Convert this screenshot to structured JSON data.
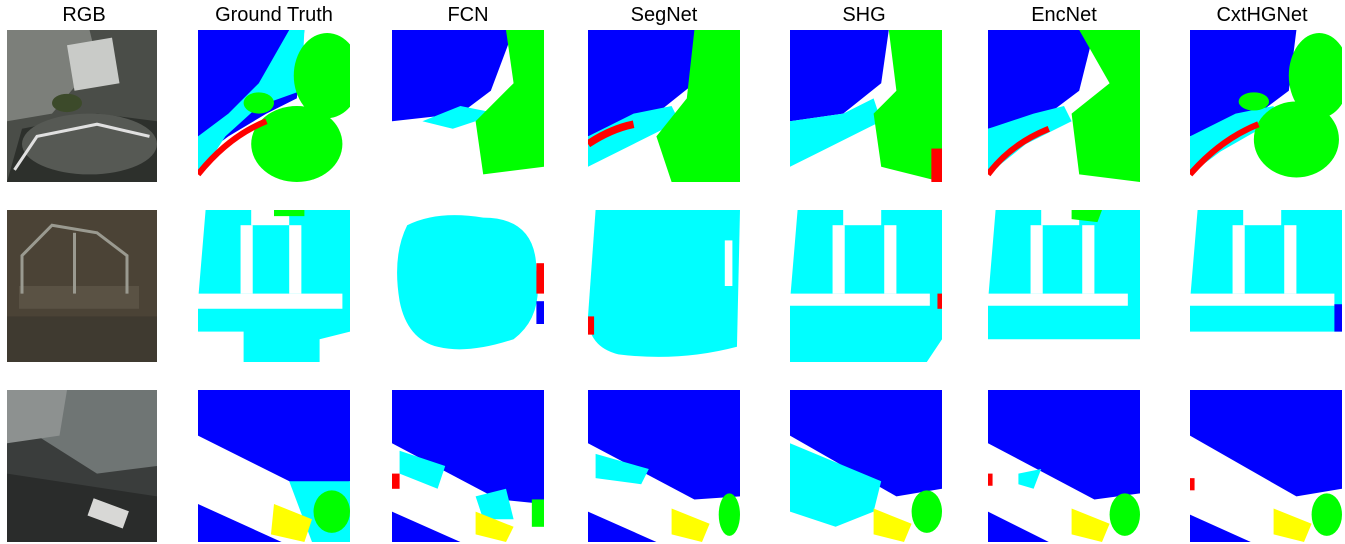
{
  "columns": [
    "RGB",
    "Ground Truth",
    "FCN",
    "SegNet",
    "SHG",
    "EncNet",
    "CxtHGNet"
  ],
  "palette": {
    "impervious_surface": "#ffffff",
    "building": "#0000ff",
    "low_vegetation": "#00ffff",
    "tree": "#00ff00",
    "car": "#ffff00",
    "clutter": "#ff0000"
  },
  "rows": [
    {
      "scene": "rooftop-with-trees"
    },
    {
      "scene": "garden-paths"
    },
    {
      "scene": "road-with-car"
    }
  ]
}
